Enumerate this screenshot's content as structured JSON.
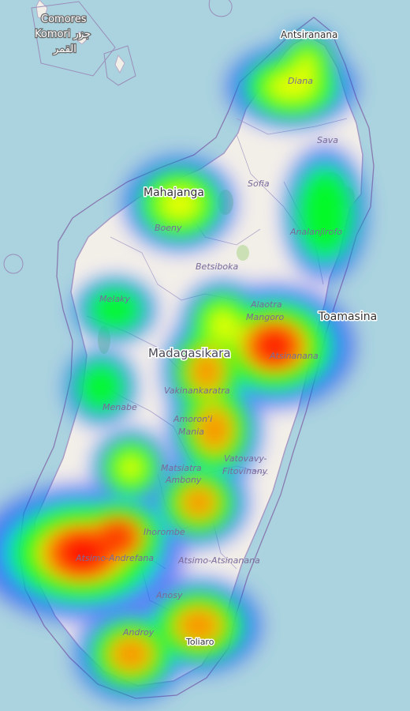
{
  "map": {
    "country_label": "Madagasikara",
    "comoros": {
      "line1": "Comores",
      "line2": "Komori جزر",
      "line3": "القمر"
    },
    "cities": {
      "antsiranana": "Antsiranana",
      "mahajanga": "Mahajanga",
      "toamasina": "Toamasina",
      "toliara": "Toliaro"
    },
    "regions": {
      "diana": "Diana",
      "sava": "Sava",
      "sofia": "Sofia",
      "boeny": "Boeny",
      "analanjirofo": "Analanjirofo",
      "betsiboka": "Betsiboka",
      "melaky": "Melaky",
      "alaotra1": "Alaotra",
      "alaotra2": "Mangoro",
      "atsinanana": "Atsinanana",
      "vakinankaratra": "Vakinankaratra",
      "menabe": "Menabe",
      "amoron1": "Amoron'i",
      "amoron2": "Mania",
      "vatovavy1": "Vatovavy-",
      "vatovavy2": "Fitovinany",
      "matsiatra1": "Matsiatra",
      "matsiatra2": "Ambony",
      "ihorombe": "Ihorombe",
      "atsimo_atsinanana": "Atsimo-Atsinanana",
      "atsimo_andrefana": "Atsimo-Andrefana",
      "anosy": "Anosy",
      "androy": "Androy"
    }
  },
  "heat_colors": [
    "#0000ff",
    "#00ffff",
    "#00ff00",
    "#ffff00",
    "#ff8000",
    "#ff0000"
  ],
  "heat_points": [
    {
      "name": "Diana",
      "intensity": 0.55
    },
    {
      "name": "Mahajanga",
      "intensity": 0.6
    },
    {
      "name": "Analanjirofo",
      "intensity": 0.45
    },
    {
      "name": "Melaky",
      "intensity": 0.35
    },
    {
      "name": "Toamasina",
      "intensity": 1.0
    },
    {
      "name": "Alaotra-Mangoro",
      "intensity": 0.65
    },
    {
      "name": "Vakinankaratra",
      "intensity": 0.7
    },
    {
      "name": "Amoron'i Mania",
      "intensity": 0.85
    },
    {
      "name": "Menabe",
      "intensity": 0.35
    },
    {
      "name": "Matsiatra Ambony",
      "intensity": 0.85
    },
    {
      "name": "Ihorombe North",
      "intensity": 0.55
    },
    {
      "name": "Atsimo-Andrefana",
      "intensity": 1.0
    },
    {
      "name": "Androy",
      "intensity": 0.8
    },
    {
      "name": "Toliaro",
      "intensity": 0.85
    }
  ]
}
